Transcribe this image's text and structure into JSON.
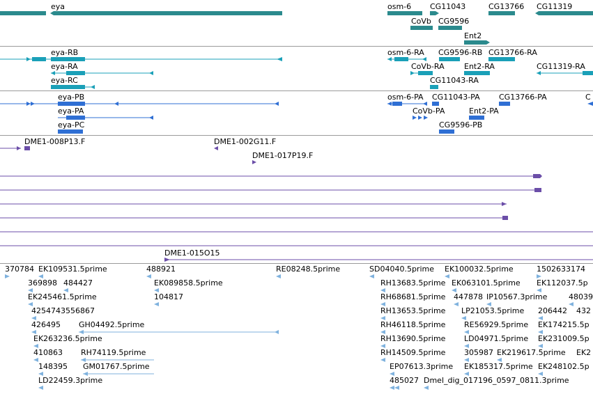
{
  "colors": {
    "gene": "#2b8a8d",
    "transcript": "#1aa0b8",
    "protein": "#2f6fd4",
    "probe": "#6b4ea8",
    "est": "#7fb2de",
    "divider": "#9a9a9a"
  },
  "tracks": {
    "genes": {
      "labels": [
        "eya",
        "osm-6",
        "CG11043",
        "CG13766",
        "CG11319",
        "CoVb",
        "CG9596",
        "Ent2"
      ]
    },
    "transcripts": {
      "labels": [
        "eya-RB",
        "eya-RA",
        "eya-RC",
        "osm-6-RA",
        "CG9596-RB",
        "CG13766-RA",
        "CoVb-RA",
        "Ent2-RA",
        "CG11319-RA",
        "CG11043-RA"
      ]
    },
    "proteins": {
      "labels": [
        "eya-PB",
        "eya-PA",
        "eya-PC",
        "osm-6-PA",
        "CG11043-PA",
        "CG13766-PA",
        "CoVb-PA",
        "Ent2-PA",
        "CG9596-PB",
        "C"
      ]
    },
    "probes": {
      "labels": [
        "DME1-008P13.F",
        "DME1-002G11.F",
        "DME1-017P19.F",
        "DME1-015O15"
      ]
    },
    "ests": {
      "labels": [
        "370784",
        "EK109531.5prime",
        "488921",
        "RE08248.5prime",
        "SD04040.5prime",
        "EK100032.5prime",
        "1502633174",
        "369898",
        "484427",
        "EK089858.5prime",
        "RH13683.5prime",
        "EK063101.5prime",
        "EK112037.5p",
        "EK245461.5prime",
        "104817",
        "RH68681.5prime",
        "447878",
        "IP10567.3prime",
        "48039",
        "4254743556867",
        "RH13653.5prime",
        "LP21053.5prime",
        "206442",
        "432",
        "426495",
        "GH04492.5prime",
        "RH46118.5prime",
        "RE56929.5prime",
        "EK174215.5p",
        "EK263236.5prime",
        "RH13690.5prime",
        "LD04971.5prime",
        "EK231009.5p",
        "410863",
        "RH74119.5prime",
        "RH14509.5prime",
        "305987",
        "EK219617.5prime",
        "EK2",
        "148395",
        "GM01767.5prime",
        "EP07613.3prime",
        "EK185317.5prime",
        "EK248102.5p",
        "LD22459.3prime",
        "485027",
        "Dmel_dig_017196_0597_0811.3prime"
      ]
    }
  }
}
